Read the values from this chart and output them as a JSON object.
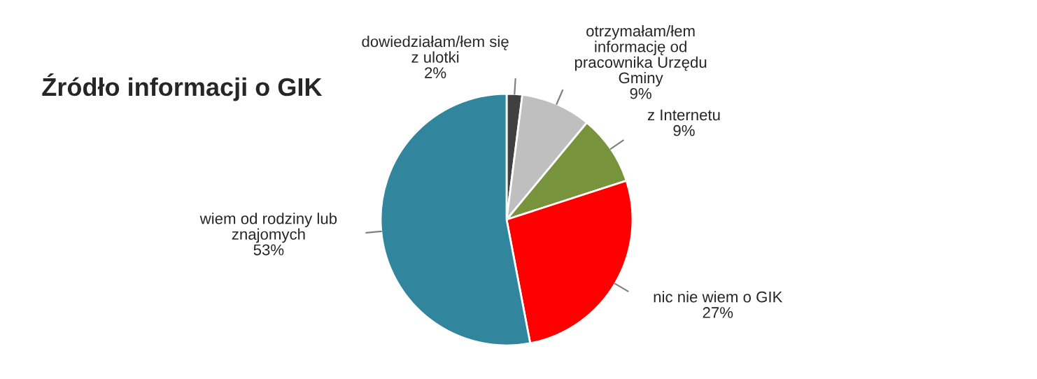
{
  "chart_data": {
    "type": "pie",
    "title": "Źródło informacji o GIK",
    "categories": [
      "dowiedziałam/łem się\nz ulotki",
      "otrzymałam/łem\ninformację od\npracownika Urzędu\nGminy",
      "z Internetu",
      "nic nie wiem o GIK",
      "wiem od rodziny lub\nznajomych"
    ],
    "values": [
      2,
      9,
      9,
      27,
      53
    ],
    "value_labels": [
      "2%",
      "9%",
      "9%",
      "27%",
      "53%"
    ],
    "colors": [
      "#404040",
      "#bfbfbf",
      "#77933c",
      "#ff0000",
      "#31859c"
    ],
    "legend": false
  }
}
